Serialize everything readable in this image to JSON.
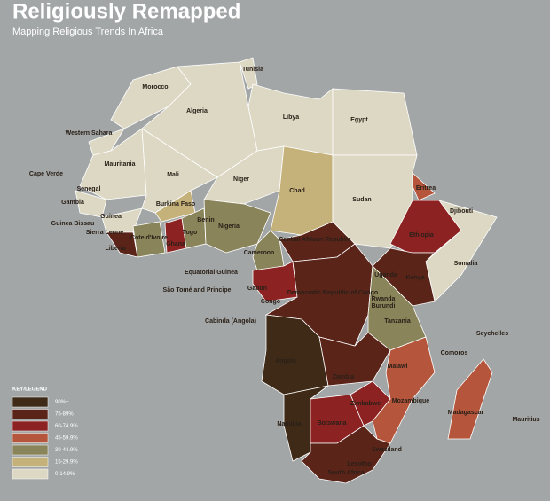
{
  "header": {
    "title": "Religiously Remapped",
    "subtitle": "Mapping Religious Trends In Africa"
  },
  "legend": {
    "title": "KEY/LEGEND",
    "items": [
      {
        "label": "90%+",
        "color": "#3e2a16"
      },
      {
        "label": "75-89%",
        "color": "#5a2419"
      },
      {
        "label": "60-74.9%",
        "color": "#8c2222"
      },
      {
        "label": "45-59.9%",
        "color": "#b4553c"
      },
      {
        "label": "30-44.9%",
        "color": "#8a845a"
      },
      {
        "label": "15-29.9%",
        "color": "#c4b27a"
      },
      {
        "label": "0-14.9%",
        "color": "#dcd8c4"
      }
    ]
  },
  "countries": [
    {
      "name": "Morocco",
      "color": "#dcd8c4"
    },
    {
      "name": "Algeria",
      "color": "#dcd8c4"
    },
    {
      "name": "Tunisia",
      "color": "#dcd8c4"
    },
    {
      "name": "Libya",
      "color": "#dcd8c4"
    },
    {
      "name": "Egypt",
      "color": "#dcd8c4"
    },
    {
      "name": "Western Sahara",
      "color": "#dcd8c4"
    },
    {
      "name": "Mauritania",
      "color": "#dcd8c4"
    },
    {
      "name": "Mali",
      "color": "#dcd8c4"
    },
    {
      "name": "Niger",
      "color": "#dcd8c4"
    },
    {
      "name": "Chad",
      "color": "#c4b27a"
    },
    {
      "name": "Sudan",
      "color": "#dcd8c4"
    },
    {
      "name": "Eritrea",
      "color": "#b4553c"
    },
    {
      "name": "Ethiopia",
      "color": "#8c2222"
    },
    {
      "name": "Somalia",
      "color": "#dcd8c4"
    },
    {
      "name": "Senegal",
      "color": "#dcd8c4"
    },
    {
      "name": "Guinea",
      "color": "#dcd8c4"
    },
    {
      "name": "Sierra Leone",
      "color": "#5a2419"
    },
    {
      "name": "Cote d'Ivoire",
      "color": "#8a845a"
    },
    {
      "name": "Burkina Faso",
      "color": "#c4b27a"
    },
    {
      "name": "Ghana",
      "color": "#8c2222"
    },
    {
      "name": "Benin",
      "color": "#8a845a"
    },
    {
      "name": "Nigeria",
      "color": "#8a845a"
    },
    {
      "name": "Cameroon",
      "color": "#8a845a"
    },
    {
      "name": "Central African Republic",
      "color": "#5a2419"
    },
    {
      "name": "Gabon",
      "color": "#8c2222"
    },
    {
      "name": "Democratic Republic of Congo",
      "color": "#5a2419"
    },
    {
      "name": "Kenya",
      "color": "#5a2419"
    },
    {
      "name": "Tanzania",
      "color": "#8a845a"
    },
    {
      "name": "Angola",
      "color": "#3e2a16"
    },
    {
      "name": "Zambia",
      "color": "#5a2419"
    },
    {
      "name": "Namibia",
      "color": "#3e2a16"
    },
    {
      "name": "Botswana",
      "color": "#8c2222"
    },
    {
      "name": "Zimbabwe",
      "color": "#8c2222"
    },
    {
      "name": "Mozambique",
      "color": "#b4553c"
    },
    {
      "name": "South Africa",
      "color": "#5a2419"
    },
    {
      "name": "Madagascar",
      "color": "#b4553c"
    }
  ],
  "labels": [
    "Cape Verde",
    "Gambia",
    "Guinea Bissau",
    "Liberia",
    "Togo",
    "Equatorial Guinea",
    "São Tomé and Principe",
    "Congo",
    "Cabinda (Angola)",
    "Djibouti",
    "Uganda",
    "Rwanda",
    "Burundi",
    "Malawi",
    "Swaziland",
    "Lesotho",
    "Comoros",
    "Seychelles",
    "Mauritius"
  ]
}
